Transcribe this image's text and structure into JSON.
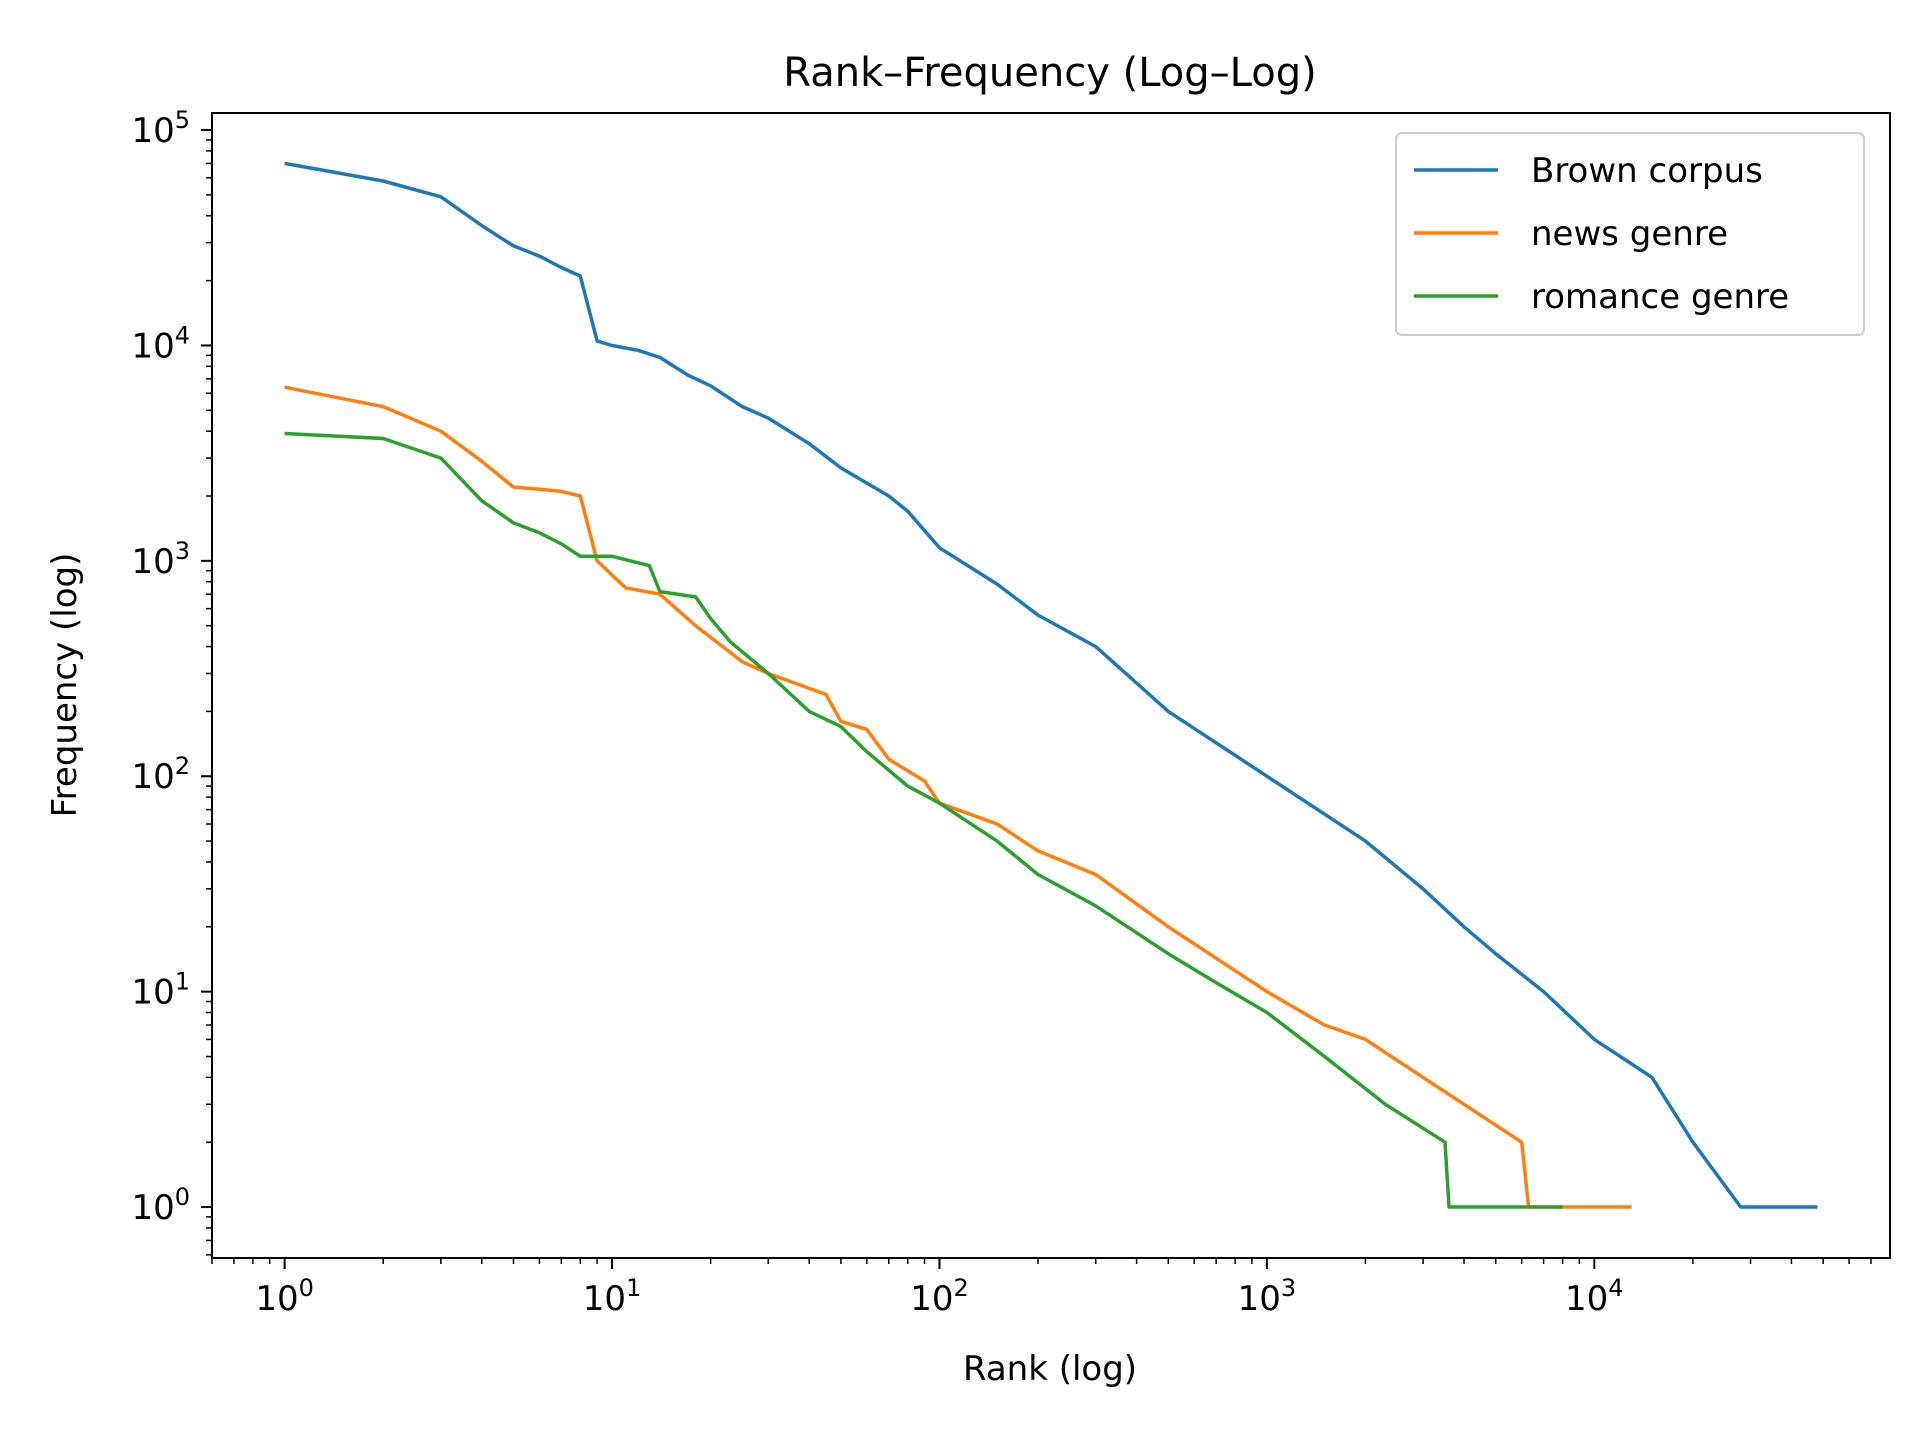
{
  "chart_data": {
    "type": "line",
    "title": "Rank–Frequency (Log–Log)",
    "xlabel": "Rank (log)",
    "ylabel": "Frequency (log)",
    "xscale": "log",
    "yscale": "log",
    "xlim": [
      0.6,
      80000
    ],
    "ylim": [
      0.58,
      120000
    ],
    "x_ticks": [
      {
        "value": 1,
        "base": "10",
        "exp": "0"
      },
      {
        "value": 10,
        "base": "10",
        "exp": "1"
      },
      {
        "value": 100,
        "base": "10",
        "exp": "2"
      },
      {
        "value": 1000,
        "base": "10",
        "exp": "3"
      },
      {
        "value": 10000,
        "base": "10",
        "exp": "4"
      }
    ],
    "y_ticks": [
      {
        "value": 1,
        "base": "10",
        "exp": "0"
      },
      {
        "value": 10,
        "base": "10",
        "exp": "1"
      },
      {
        "value": 100,
        "base": "10",
        "exp": "2"
      },
      {
        "value": 1000,
        "base": "10",
        "exp": "3"
      },
      {
        "value": 10000,
        "base": "10",
        "exp": "4"
      },
      {
        "value": 100000,
        "base": "10",
        "exp": "5"
      }
    ],
    "grid": false,
    "legend_position": "top-right",
    "series": [
      {
        "name": "Brown corpus",
        "color": "#1f77b4",
        "x": [
          1,
          2,
          3,
          4,
          5,
          6,
          7,
          8,
          9,
          10,
          12,
          14,
          17,
          20,
          25,
          30,
          40,
          50,
          70,
          80,
          100,
          150,
          200,
          300,
          500,
          1000,
          2000,
          3000,
          4000,
          5000,
          7000,
          10000,
          15000,
          20000,
          28000,
          48000
        ],
        "y": [
          70000,
          58000,
          49000,
          36000,
          29000,
          26000,
          23000,
          21000,
          10500,
          10000,
          9500,
          8800,
          7300,
          6500,
          5200,
          4600,
          3500,
          2700,
          2000,
          1700,
          1150,
          780,
          560,
          400,
          200,
          100,
          50,
          30,
          20,
          15,
          10,
          6,
          4,
          2,
          1,
          1
        ]
      },
      {
        "name": "news genre",
        "color": "#ff7f0e",
        "x": [
          1,
          2,
          3,
          4,
          5,
          6,
          7,
          8,
          9,
          11,
          14,
          18,
          25,
          30,
          45,
          50,
          60,
          70,
          90,
          100,
          150,
          200,
          300,
          500,
          1000,
          1500,
          2000,
          3000,
          4000,
          6000,
          6300,
          13000
        ],
        "y": [
          6400,
          5200,
          4000,
          2900,
          2200,
          2150,
          2100,
          2000,
          1000,
          750,
          700,
          500,
          340,
          300,
          240,
          180,
          165,
          120,
          95,
          75,
          60,
          45,
          35,
          20,
          10,
          7,
          6,
          4,
          3,
          2,
          1,
          1
        ]
      },
      {
        "name": "romance genre",
        "color": "#2ca02c",
        "x": [
          1,
          2,
          3,
          4,
          5,
          6,
          7,
          8,
          10,
          13,
          14,
          18,
          20,
          23,
          30,
          40,
          50,
          60,
          80,
          100,
          150,
          200,
          300,
          500,
          700,
          1000,
          1500,
          2300,
          3500,
          3600,
          8000
        ],
        "y": [
          3900,
          3700,
          3000,
          1900,
          1500,
          1350,
          1200,
          1050,
          1050,
          950,
          720,
          680,
          540,
          420,
          300,
          200,
          170,
          130,
          90,
          75,
          50,
          35,
          25,
          15,
          11,
          8,
          5,
          3,
          2,
          1,
          1
        ]
      }
    ]
  }
}
